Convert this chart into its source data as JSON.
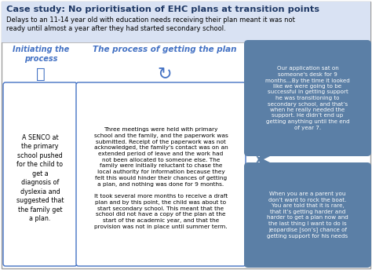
{
  "title": "Case study: No prioritisation of EHC plans at transition points",
  "subtitle": "Delays to an 11-14 year old with education needs receiving their plan meant it was not\nready until almost a year after they had started secondary school.",
  "title_color": "#1F3864",
  "subtitle_color": "#000000",
  "col1_header": "Initiating the\nprocess",
  "col2_header": "The process of getting the plan",
  "col_header_color": "#4472C4",
  "box1_text": "A SENCO at\nthe primary\nschool pushed\nfor the child to\nget a\ndiagnosis of\ndyslexia and\nsuggested that\nthe family get\na plan.",
  "box2_text": "Three meetings were held with primary\nschool and the family, and the paperwork was\nsubmitted. Receipt of the paperwork was not\nacknowledged, the family's contact was on an\nextended period of leave and the work had\nnot been allocated to someone else. The\nfamily were initially reluctant to chase the\nlocal authority for information because they\nfelt this would hinder their chances of getting\na plan, and nothing was done for 9 months.\n\nIt took several more months to receive a draft\nplan and by this point, the child was about to\nstart secondary school. This meant that the\nschool did not have a copy of the plan at the\nstart of the academic year, and that the\nprovision was not in place until summer term.",
  "quote1_text": "Our application sat on\nsomeone's desk for 9\nmonths…By the time it looked\nlike we were going to be\nsuccessful in getting support\nhe was transitioning to\nsecondary school, and that’s\nwhen he really needed the\nsupport. He didn’t end up\ngetting anything until the end\nof year 7.",
  "quote2_text": "When you are a parent you\ndon’t want to rock the boat.\nYou are told that it is rare,\nthat it’s getting harder and\nharder to get a plan now and\nthe last thing I want to do is\njeopardise [son’s] chance of\ngetting support for his needs",
  "quote_bg": "#5B7FA6",
  "quote_text_color": "#FFFFFF",
  "box_border_color": "#4472C4",
  "box_bg": "#FFFFFF",
  "bg_color": "#FFFFFF",
  "outer_border": "#A0A0A0",
  "title_bg": "#D9E2F3"
}
